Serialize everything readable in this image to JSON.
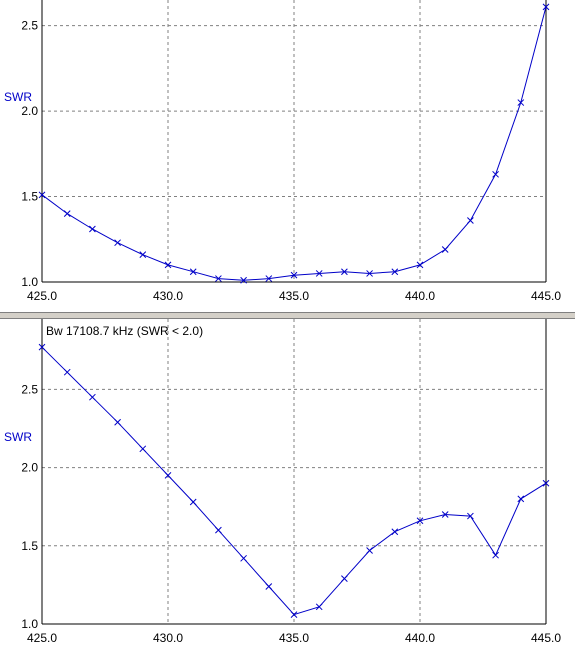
{
  "chart_data": [
    {
      "type": "line",
      "ylabel": "SWR",
      "annotation": "",
      "xlim": [
        425.0,
        445.0
      ],
      "ylim": [
        1.0,
        2.65
      ],
      "x_ticks": [
        "425.0",
        "430.0",
        "435.0",
        "440.0",
        "445.0"
      ],
      "y_ticks": [
        "1.0",
        "1.5",
        "2.0",
        "2.5"
      ],
      "x_tick_values": [
        425,
        430,
        435,
        440,
        445
      ],
      "y_tick_values": [
        1.0,
        1.5,
        2.0,
        2.5
      ],
      "grid": true,
      "line_color": "#0000c8",
      "series": [
        {
          "x": [
            425,
            426,
            427,
            428,
            429,
            430,
            431,
            432,
            433,
            434,
            435,
            436,
            437,
            438,
            439,
            440,
            441,
            442,
            443,
            444,
            445
          ],
          "values": [
            1.51,
            1.4,
            1.31,
            1.23,
            1.16,
            1.1,
            1.06,
            1.02,
            1.01,
            1.02,
            1.04,
            1.05,
            1.06,
            1.05,
            1.06,
            1.1,
            1.19,
            1.36,
            1.63,
            2.05,
            2.61
          ]
        }
      ]
    },
    {
      "type": "line",
      "ylabel": "SWR",
      "annotation": "Bw 17108.7 kHz (SWR < 2.0)",
      "xlim": [
        425.0,
        445.0
      ],
      "ylim": [
        1.0,
        2.95
      ],
      "x_ticks": [
        "425.0",
        "430.0",
        "435.0",
        "440.0",
        "445.0"
      ],
      "y_ticks": [
        "1.0",
        "1.5",
        "2.0",
        "2.5"
      ],
      "x_tick_values": [
        425,
        430,
        435,
        440,
        445
      ],
      "y_tick_values": [
        1.0,
        1.5,
        2.0,
        2.5
      ],
      "grid": true,
      "line_color": "#0000c8",
      "series": [
        {
          "x": [
            425,
            426,
            427,
            428,
            429,
            430,
            431,
            432,
            433,
            434,
            435,
            436,
            437,
            438,
            439,
            440,
            441,
            442,
            443,
            444,
            445
          ],
          "values": [
            2.77,
            2.61,
            2.45,
            2.29,
            2.12,
            1.95,
            1.78,
            1.6,
            1.42,
            1.24,
            1.06,
            1.11,
            1.29,
            1.47,
            1.59,
            1.66,
            1.7,
            1.69,
            1.44,
            1.8,
            1.9
          ]
        }
      ]
    }
  ]
}
